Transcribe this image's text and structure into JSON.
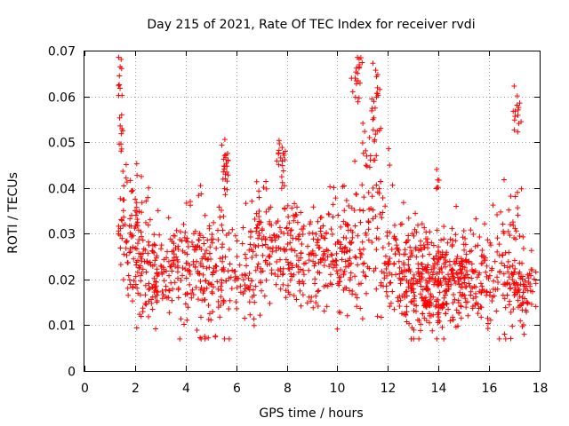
{
  "chart_data": {
    "type": "scatter",
    "title": "Day 215 of 2021, Rate Of TEC Index for receiver rvdi",
    "xlabel": "GPS time / hours",
    "ylabel": "ROTI / TECUs",
    "xlim": [
      0,
      18
    ],
    "ylim": [
      0,
      0.07
    ],
    "xticks": [
      "0",
      "2",
      "4",
      "6",
      "8",
      "10",
      "12",
      "14",
      "16",
      "18"
    ],
    "yticks": [
      "0",
      "0.01",
      "0.02",
      "0.03",
      "0.04",
      "0.05",
      "0.06",
      "0.07"
    ],
    "grid": true,
    "marker": "+",
    "color": "#ff0000",
    "clusters": [
      {
        "x": 1.4,
        "y": 0.064,
        "sx": 0.05,
        "sy": 0.003,
        "n": 10
      },
      {
        "x": 1.45,
        "y": 0.051,
        "sx": 0.05,
        "sy": 0.004,
        "n": 10
      },
      {
        "x": 1.8,
        "y": 0.032,
        "sx": 0.3,
        "sy": 0.006,
        "n": 80
      },
      {
        "x": 2.3,
        "y": 0.02,
        "sx": 0.3,
        "sy": 0.005,
        "n": 60
      },
      {
        "x": 3.0,
        "y": 0.022,
        "sx": 0.4,
        "sy": 0.005,
        "n": 70
      },
      {
        "x": 4.0,
        "y": 0.023,
        "sx": 0.5,
        "sy": 0.006,
        "n": 110
      },
      {
        "x": 5.0,
        "y": 0.022,
        "sx": 0.4,
        "sy": 0.007,
        "n": 100
      },
      {
        "x": 5.6,
        "y": 0.043,
        "sx": 0.08,
        "sy": 0.004,
        "n": 25
      },
      {
        "x": 6.3,
        "y": 0.021,
        "sx": 0.4,
        "sy": 0.005,
        "n": 60
      },
      {
        "x": 7.0,
        "y": 0.03,
        "sx": 0.3,
        "sy": 0.006,
        "n": 60
      },
      {
        "x": 7.8,
        "y": 0.045,
        "sx": 0.1,
        "sy": 0.003,
        "n": 20
      },
      {
        "x": 8.0,
        "y": 0.027,
        "sx": 0.5,
        "sy": 0.006,
        "n": 110
      },
      {
        "x": 9.2,
        "y": 0.025,
        "sx": 0.5,
        "sy": 0.005,
        "n": 100
      },
      {
        "x": 10.4,
        "y": 0.025,
        "sx": 0.5,
        "sy": 0.007,
        "n": 110
      },
      {
        "x": 10.8,
        "y": 0.063,
        "sx": 0.1,
        "sy": 0.004,
        "n": 20
      },
      {
        "x": 11.5,
        "y": 0.056,
        "sx": 0.1,
        "sy": 0.005,
        "n": 25
      },
      {
        "x": 11.2,
        "y": 0.04,
        "sx": 0.4,
        "sy": 0.006,
        "n": 50
      },
      {
        "x": 12.5,
        "y": 0.022,
        "sx": 0.6,
        "sy": 0.006,
        "n": 150
      },
      {
        "x": 13.6,
        "y": 0.018,
        "sx": 0.5,
        "sy": 0.005,
        "n": 150
      },
      {
        "x": 14.5,
        "y": 0.02,
        "sx": 0.5,
        "sy": 0.005,
        "n": 140
      },
      {
        "x": 15.6,
        "y": 0.021,
        "sx": 0.5,
        "sy": 0.006,
        "n": 120
      },
      {
        "x": 14.0,
        "y": 0.042,
        "sx": 0.05,
        "sy": 0.002,
        "n": 6
      },
      {
        "x": 16.8,
        "y": 0.025,
        "sx": 0.25,
        "sy": 0.008,
        "n": 60
      },
      {
        "x": 17.1,
        "y": 0.056,
        "sx": 0.08,
        "sy": 0.004,
        "n": 15
      },
      {
        "x": 17.3,
        "y": 0.018,
        "sx": 0.3,
        "sy": 0.005,
        "n": 70
      }
    ]
  }
}
